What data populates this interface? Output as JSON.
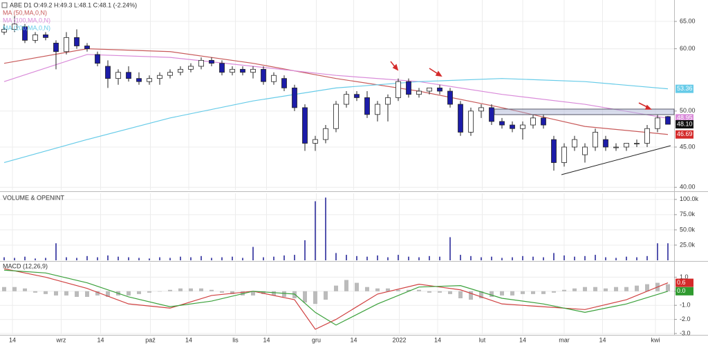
{
  "chart_data": [
    {
      "type": "candlestick",
      "title": "ABE  D1  O:49.2  H:49.3  L:48.1  C:48.1  (-2.24%)",
      "log": true,
      "grid": true,
      "ylim": [
        39.7,
        69.2
      ],
      "yticks": [
        {
          "value": 40,
          "label": "40.00"
        },
        {
          "value": 45,
          "label": "45.00"
        },
        {
          "value": 50,
          "label": "50.00"
        },
        {
          "value": 60,
          "label": "60.00"
        },
        {
          "value": 65,
          "label": "65.00"
        }
      ],
      "xlim": [
        -0.4,
        64.6
      ],
      "xticks": [
        {
          "value": 0.8,
          "label": "14"
        },
        {
          "value": 5.5,
          "label": "wrz"
        },
        {
          "value": 9.3,
          "label": "14"
        },
        {
          "value": 14.1,
          "label": "paź"
        },
        {
          "value": 17.8,
          "label": "14"
        },
        {
          "value": 22.3,
          "label": "lis"
        },
        {
          "value": 25.3,
          "label": "14"
        },
        {
          "value": 30.1,
          "label": "gru"
        },
        {
          "value": 33.7,
          "label": "14"
        },
        {
          "value": 38.1,
          "label": "2022"
        },
        {
          "value": 41.8,
          "label": "14"
        },
        {
          "value": 46.1,
          "label": "lut"
        },
        {
          "value": 50,
          "label": "14"
        },
        {
          "value": 54,
          "label": "mar"
        },
        {
          "value": 57.7,
          "label": "14"
        },
        {
          "value": 62.8,
          "label": "kwi"
        }
      ],
      "up_color": "#ffffff",
      "down_color": "#1c1ca8",
      "open": [
        63,
        63.5,
        64,
        61.5,
        62.5,
        61,
        59.5,
        62,
        60.5,
        59,
        57,
        55,
        56,
        55,
        54.5,
        55,
        55.5,
        56,
        56.5,
        57,
        58,
        57.5,
        56,
        56.5,
        56,
        56.5,
        54.5,
        55,
        53.5,
        50.5,
        45.5,
        46,
        47.5,
        51,
        52.5,
        52,
        49.5,
        51,
        52,
        54.5,
        52.5,
        53,
        53.5,
        53,
        51,
        47,
        50,
        50.5,
        48.5,
        48,
        47.5,
        48,
        49,
        46,
        43,
        45,
        44,
        45,
        46,
        45,
        45,
        45.5,
        45.5,
        47.5,
        49.2
      ],
      "high": [
        64.5,
        66,
        64.5,
        63,
        63,
        61.5,
        63,
        63.5,
        61,
        59.5,
        58,
        56.5,
        57,
        56,
        55.5,
        56,
        56.5,
        57,
        57.5,
        58.5,
        58.5,
        58,
        57,
        57,
        57,
        57,
        56,
        55.5,
        54,
        51,
        46.5,
        48,
        51.5,
        53,
        53,
        53,
        51.5,
        52.5,
        55,
        55,
        53.5,
        53.5,
        54,
        53.5,
        51.5,
        50.5,
        51,
        51,
        49,
        48.5,
        48.5,
        49.5,
        49.5,
        46.5,
        45.5,
        46.5,
        45.5,
        47.5,
        46.5,
        45.5,
        45.5,
        46,
        48,
        49.5,
        49.3
      ],
      "low": [
        62.5,
        63,
        61,
        61,
        61.5,
        56.5,
        59,
        60,
        59.5,
        57,
        53.5,
        54,
        54.5,
        54,
        54,
        54,
        55,
        55.5,
        56,
        56.5,
        57,
        55.5,
        55.5,
        55.5,
        55,
        54,
        54,
        53,
        50,
        44.5,
        44.5,
        45.5,
        47,
        50.5,
        51.5,
        49,
        48.5,
        48.5,
        51.5,
        52,
        52,
        52.5,
        52.5,
        50.5,
        46.5,
        46.5,
        49,
        48,
        47.5,
        47,
        46,
        47.5,
        47.5,
        42,
        42.5,
        44.5,
        43,
        44.5,
        44.5,
        44.5,
        44.5,
        45,
        45,
        47,
        48.1
      ],
      "close": [
        63.5,
        64.5,
        61.5,
        62.5,
        62,
        59.5,
        62,
        60.5,
        60,
        57.5,
        55,
        56,
        55,
        54.5,
        55,
        55.5,
        56,
        56.5,
        57,
        58,
        57.5,
        56,
        56.5,
        56,
        56.5,
        54.5,
        55.5,
        53.5,
        50.5,
        45.5,
        46,
        47.5,
        51,
        52.5,
        52,
        49.5,
        51,
        52,
        54.5,
        52.5,
        53,
        53.5,
        53,
        51,
        47,
        50,
        50.5,
        48.5,
        48,
        47.5,
        48,
        49,
        48,
        43,
        45,
        46,
        45,
        47,
        45,
        45,
        45.5,
        45.5,
        47.5,
        49,
        48.1
      ],
      "last_label": "48.10",
      "series": [
        {
          "name": "MA (50,MA,0,N)",
          "color": "#c85a5a",
          "x": [
            0,
            8,
            16,
            24,
            32,
            40,
            48,
            56,
            64
          ],
          "values": [
            57.5,
            60,
            59.5,
            57.5,
            55,
            53,
            50.5,
            47.8,
            46.69
          ],
          "last_label": "46.69",
          "label_bg": "#d42a2a"
        },
        {
          "name": "MA (100,MA,0,N)",
          "color": "#d98ad9",
          "x": [
            0,
            8,
            16,
            24,
            32,
            40,
            48,
            56,
            64
          ],
          "values": [
            54.5,
            59,
            58.5,
            57,
            55.5,
            54.5,
            52.5,
            51,
            48.95
          ],
          "last_label": "48.95",
          "label_bg": "#d98ad9"
        },
        {
          "name": "MA (200,MA,0,N)",
          "color": "#66cbe8",
          "x": [
            0,
            8,
            16,
            24,
            32,
            40,
            48,
            56,
            64
          ],
          "values": [
            43,
            46,
            49,
            51.5,
            53.5,
            54.5,
            55,
            54.5,
            53.36
          ],
          "last_label": "53.36",
          "label_bg": "#66cbe8"
        }
      ]
    },
    {
      "type": "bar",
      "title": "VOLUME & OPENINT",
      "color": "#2a2a9a",
      "ylim": [
        0,
        110000
      ],
      "yticks": [
        {
          "value": 25000,
          "label": "25.0k"
        },
        {
          "value": 50000,
          "label": "50.0k"
        },
        {
          "value": 75000,
          "label": "75.0k"
        },
        {
          "value": 100000,
          "label": "100.0k"
        }
      ],
      "values": [
        5000,
        4000,
        6000,
        3000,
        4000,
        28000,
        5000,
        4000,
        7000,
        5000,
        8000,
        6000,
        5000,
        4000,
        3000,
        5000,
        4000,
        6000,
        5000,
        7000,
        4000,
        5000,
        6000,
        4000,
        22000,
        5000,
        6000,
        8000,
        9000,
        33000,
        97000,
        103000,
        12000,
        9000,
        7000,
        6000,
        8000,
        5000,
        9000,
        6000,
        5000,
        7000,
        6000,
        38000,
        9000,
        7000,
        5000,
        6000,
        4000,
        5000,
        7000,
        6000,
        5000,
        12000,
        8000,
        6000,
        7000,
        9000,
        5000,
        4000,
        6000,
        5000,
        7000,
        28000,
        28000
      ]
    },
    {
      "type": "macd",
      "title": "MACD (12,26,9)",
      "hist_color": "#bbbbbb",
      "ylim": [
        -3.05,
        2.05
      ],
      "yticks": [
        {
          "value": 1,
          "label": "1.0"
        },
        {
          "value": 0,
          "label": "0.0"
        },
        {
          "value": -1,
          "label": "-1.0"
        },
        {
          "value": -2,
          "label": "-2.0"
        },
        {
          "value": -3,
          "label": "-3.0"
        }
      ],
      "histogram": [
        0.3,
        0.3,
        0.2,
        -0.1,
        -0.2,
        -0.3,
        -0.3,
        -0.4,
        -0.4,
        -0.3,
        -0.4,
        -0.3,
        -0.3,
        -0.2,
        -0.1,
        0,
        0.1,
        0.2,
        0.2,
        0.2,
        0.1,
        -0.1,
        -0.2,
        -0.3,
        -0.3,
        -0.2,
        -0.3,
        -0.4,
        -0.5,
        -0.8,
        -0.9,
        -0.6,
        0.4,
        0.8,
        0.6,
        0.3,
        0.2,
        0.2,
        0.1,
        0.1,
        0.1,
        -0.1,
        -0.1,
        -0.2,
        -0.5,
        -0.6,
        -0.5,
        -0.4,
        -0.3,
        -0.3,
        -0.2,
        -0.2,
        -0.2,
        -0.1,
        0.1,
        0.2,
        0.3,
        0.3,
        0.2,
        0.3,
        0.3,
        0.4,
        0.5,
        0.6,
        0.5
      ],
      "series": [
        {
          "name": "MACD",
          "color": "#d04040",
          "x": [
            0,
            4,
            8,
            12,
            16,
            20,
            24,
            28,
            30,
            32,
            36,
            40,
            44,
            48,
            52,
            56,
            60,
            64
          ],
          "values": [
            1.6,
            1.0,
            0.2,
            -0.9,
            -1.2,
            -0.3,
            0,
            -0.6,
            -2.7,
            -2.0,
            -0.2,
            0.5,
            0.1,
            -0.9,
            -1.1,
            -1.3,
            -0.6,
            0.6
          ],
          "last_label": "0.6",
          "label_bg": "#d42a2a"
        },
        {
          "name": "Signal",
          "color": "#3aa03a",
          "x": [
            0,
            4,
            8,
            12,
            16,
            20,
            24,
            28,
            30,
            32,
            36,
            40,
            44,
            48,
            52,
            56,
            60,
            64
          ],
          "values": [
            1.5,
            1.3,
            0.6,
            -0.4,
            -1.1,
            -0.7,
            0,
            -0.2,
            -1.5,
            -2.4,
            -0.9,
            0.3,
            0.4,
            -0.5,
            -0.9,
            -1.5,
            -0.9,
            0
          ],
          "last_label": "0.0",
          "label_bg": "#2f9a2f"
        }
      ]
    }
  ]
}
